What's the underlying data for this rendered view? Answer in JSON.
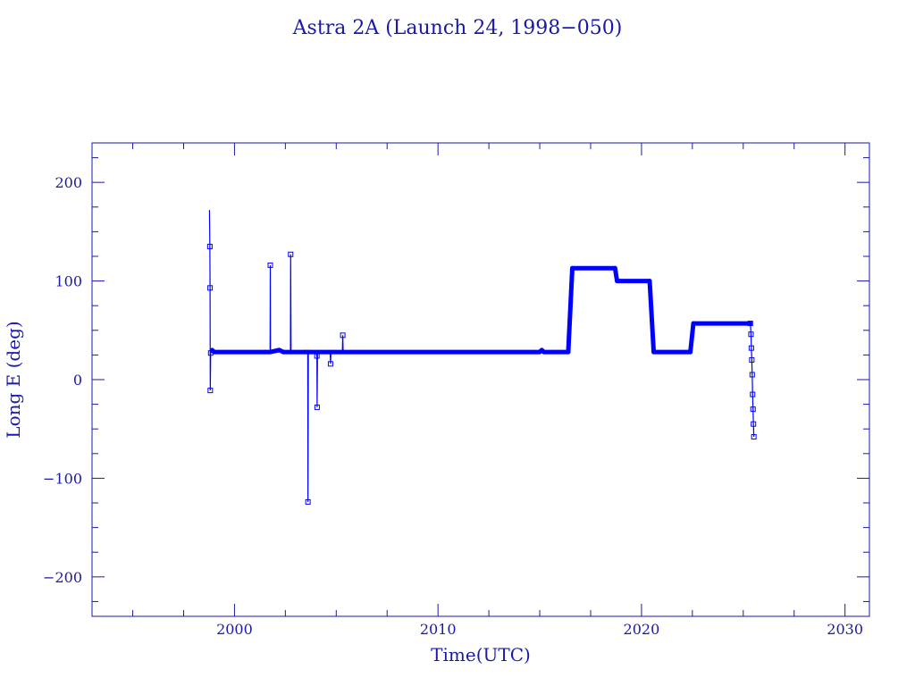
{
  "chart_data": {
    "type": "line",
    "title": "Astra 2A (Launch 24, 1998−050)",
    "xlabel": "Time(UTC)",
    "ylabel": "Long E (deg)",
    "xlim": [
      1993,
      2031.2
    ],
    "ylim": [
      -240,
      240
    ],
    "x_ticks": [
      2000,
      2010,
      2020,
      2030
    ],
    "x_tick_labels": [
      "2000",
      "2010",
      "2020",
      "2030"
    ],
    "y_ticks": [
      200,
      100,
      0,
      -100,
      -200
    ],
    "y_tick_labels": [
      "200",
      "100",
      "0",
      "−100",
      "−200"
    ],
    "grid": false,
    "colors": {
      "axis": "#1a1aa8",
      "series": "#0000ff"
    },
    "series": [
      {
        "points": [
          [
            1998.77,
            172
          ],
          [
            1998.79,
            135
          ],
          [
            1998.8,
            93
          ],
          [
            1998.81,
            -11
          ],
          [
            1998.83,
            27
          ],
          [
            1998.9,
            30
          ],
          [
            1999.0,
            28
          ],
          [
            2001.5,
            28
          ],
          [
            2001.75,
            28
          ],
          [
            2001.76,
            116
          ],
          [
            2001.77,
            28
          ],
          [
            2002.2,
            30
          ],
          [
            2002.4,
            28
          ],
          [
            2002.75,
            28
          ],
          [
            2002.76,
            127
          ],
          [
            2002.78,
            28
          ],
          [
            2003.5,
            28
          ],
          [
            2003.6,
            28
          ],
          [
            2003.61,
            -124
          ],
          [
            2003.63,
            28
          ],
          [
            2004.0,
            28
          ],
          [
            2004.05,
            24
          ],
          [
            2004.06,
            -28
          ],
          [
            2004.08,
            28
          ],
          [
            2004.7,
            28
          ],
          [
            2004.72,
            16
          ],
          [
            2004.74,
            28
          ],
          [
            2005.3,
            28
          ],
          [
            2005.32,
            45
          ],
          [
            2005.34,
            28
          ],
          [
            2015.0,
            28
          ],
          [
            2015.1,
            30
          ],
          [
            2015.2,
            28
          ],
          [
            2016.4,
            28
          ],
          [
            2016.6,
            113
          ],
          [
            2018.7,
            113
          ],
          [
            2018.8,
            100
          ],
          [
            2020.4,
            100
          ],
          [
            2020.6,
            28
          ],
          [
            2022.4,
            28
          ],
          [
            2022.55,
            57
          ],
          [
            2025.35,
            57
          ],
          [
            2025.38,
            46
          ],
          [
            2025.4,
            32
          ],
          [
            2025.42,
            20
          ],
          [
            2025.44,
            5
          ],
          [
            2025.46,
            -15
          ],
          [
            2025.48,
            -30
          ],
          [
            2025.5,
            -45
          ],
          [
            2025.52,
            -58
          ]
        ]
      }
    ]
  }
}
